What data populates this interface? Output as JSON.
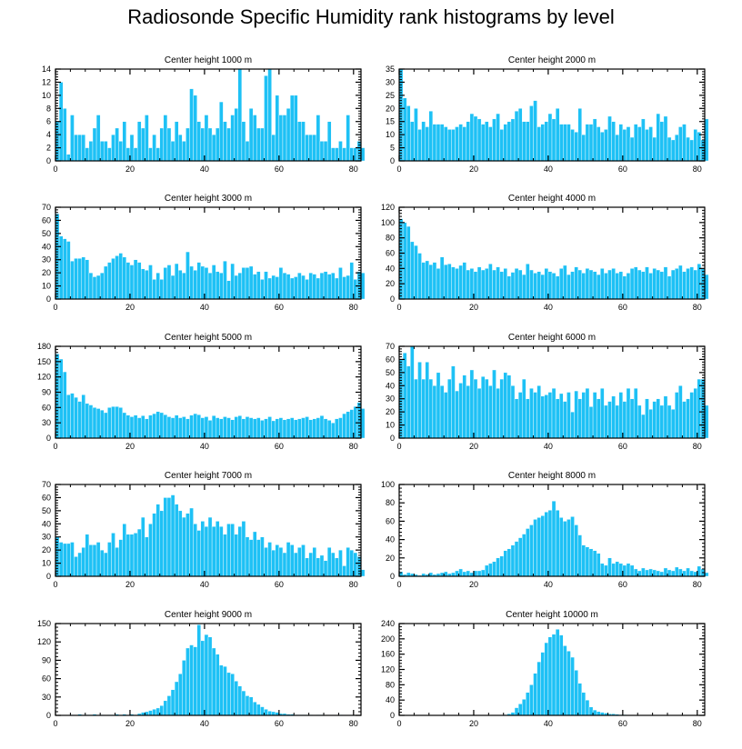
{
  "title": "Radiosonde Specific Humidity rank histograms by level",
  "colors": {
    "bar": "#1ec1f5",
    "axis": "#000000",
    "bar_edge": "#ffffff"
  },
  "chart_data": [
    {
      "type": "bar",
      "title": "Center height 1000 m",
      "xlabel": "",
      "ylabel": "",
      "xlim": [
        0,
        82
      ],
      "ylim": [
        0,
        14
      ],
      "xticks": [
        0,
        20,
        40,
        60,
        80
      ],
      "yticks": [
        0,
        2,
        4,
        6,
        8,
        10,
        12,
        14
      ],
      "values": [
        6,
        12,
        8,
        1,
        7,
        4,
        4,
        4,
        2,
        3,
        5,
        7,
        3,
        3,
        2,
        4,
        5,
        3,
        6,
        2,
        4,
        2,
        6,
        5,
        7,
        2,
        4,
        2,
        5,
        7,
        5,
        3,
        6,
        4,
        3,
        5,
        11,
        10,
        6,
        5,
        7,
        5,
        4,
        5,
        9,
        6,
        5,
        7,
        8,
        14,
        6,
        3,
        8,
        7,
        5,
        5,
        13,
        14,
        4,
        10,
        7,
        7,
        8,
        10,
        10,
        6,
        6,
        4,
        4,
        4,
        7,
        3,
        3,
        6,
        2,
        2,
        3,
        2,
        7,
        2,
        2,
        3,
        2
      ]
    },
    {
      "type": "bar",
      "title": "Center height 2000 m",
      "xlabel": "",
      "ylabel": "",
      "xlim": [
        0,
        82
      ],
      "ylim": [
        0,
        35
      ],
      "xticks": [
        0,
        20,
        40,
        60,
        80
      ],
      "yticks": [
        0,
        5,
        10,
        15,
        20,
        25,
        30,
        35
      ],
      "values": [
        35,
        24,
        21,
        15,
        20,
        12,
        15,
        13,
        19,
        14,
        14,
        14,
        13,
        12,
        12,
        13,
        14,
        13,
        15,
        18,
        17,
        16,
        14,
        15,
        13,
        16,
        18,
        12,
        14,
        15,
        16,
        19,
        20,
        15,
        15,
        21,
        23,
        13,
        14,
        15,
        18,
        16,
        20,
        14,
        14,
        14,
        12,
        11,
        20,
        10,
        14,
        14,
        16,
        13,
        11,
        12,
        17,
        15,
        10,
        14,
        12,
        13,
        9,
        14,
        13,
        16,
        12,
        13,
        9,
        18,
        15,
        17,
        9,
        8,
        10,
        13,
        14,
        9,
        8,
        12,
        11,
        8,
        16
      ]
    },
    {
      "type": "bar",
      "title": "Center height 3000 m",
      "xlabel": "",
      "ylabel": "",
      "xlim": [
        0,
        82
      ],
      "ylim": [
        0,
        70
      ],
      "xticks": [
        0,
        20,
        40,
        60,
        80
      ],
      "yticks": [
        0,
        10,
        20,
        30,
        40,
        50,
        60,
        70
      ],
      "values": [
        65,
        48,
        46,
        44,
        29,
        31,
        31,
        32,
        30,
        20,
        17,
        18,
        20,
        25,
        28,
        31,
        33,
        35,
        32,
        28,
        26,
        30,
        28,
        23,
        22,
        26,
        15,
        20,
        15,
        24,
        26,
        18,
        27,
        22,
        20,
        36,
        25,
        22,
        28,
        25,
        24,
        20,
        26,
        21,
        20,
        29,
        14,
        27,
        18,
        20,
        24,
        24,
        25,
        19,
        21,
        15,
        21,
        16,
        18,
        17,
        24,
        20,
        19,
        16,
        17,
        20,
        18,
        15,
        20,
        19,
        16,
        20,
        21,
        19,
        20,
        16,
        24,
        17,
        18,
        28,
        15,
        21,
        20
      ]
    },
    {
      "type": "bar",
      "title": "Center height 4000 m",
      "xlabel": "",
      "ylabel": "",
      "xlim": [
        0,
        82
      ],
      "ylim": [
        0,
        120
      ],
      "xticks": [
        0,
        20,
        40,
        60,
        80
      ],
      "yticks": [
        0,
        20,
        40,
        60,
        80,
        100,
        120
      ],
      "values": [
        105,
        100,
        95,
        75,
        70,
        60,
        48,
        50,
        45,
        48,
        40,
        55,
        45,
        46,
        42,
        40,
        44,
        48,
        38,
        40,
        36,
        42,
        38,
        40,
        46,
        38,
        42,
        36,
        40,
        30,
        35,
        40,
        38,
        32,
        46,
        38,
        34,
        36,
        32,
        40,
        36,
        34,
        30,
        40,
        44,
        32,
        36,
        42,
        38,
        34,
        40,
        38,
        36,
        32,
        40,
        34,
        38,
        40,
        34,
        36,
        30,
        34,
        40,
        42,
        38,
        36,
        42,
        34,
        40,
        38,
        36,
        42,
        30,
        38,
        40,
        44,
        36,
        40,
        42,
        38,
        46,
        40,
        32
      ]
    },
    {
      "type": "bar",
      "title": "Center height 5000 m",
      "xlabel": "",
      "ylabel": "",
      "xlim": [
        0,
        82
      ],
      "ylim": [
        0,
        180
      ],
      "xticks": [
        0,
        20,
        40,
        60,
        80
      ],
      "yticks": [
        0,
        30,
        60,
        90,
        120,
        150,
        180
      ],
      "values": [
        165,
        155,
        130,
        85,
        88,
        80,
        72,
        85,
        68,
        65,
        60,
        58,
        55,
        50,
        60,
        62,
        62,
        60,
        50,
        45,
        42,
        45,
        40,
        44,
        38,
        45,
        48,
        52,
        50,
        46,
        42,
        40,
        45,
        40,
        42,
        38,
        45,
        48,
        46,
        40,
        42,
        35,
        44,
        40,
        38,
        42,
        40,
        36,
        42,
        44,
        38,
        42,
        40,
        38,
        40,
        35,
        38,
        42,
        34,
        38,
        40,
        36,
        38,
        40,
        36,
        38,
        40,
        42,
        36,
        38,
        40,
        44,
        38,
        35,
        30,
        38,
        40,
        48,
        52,
        56,
        62,
        70,
        58
      ]
    },
    {
      "type": "bar",
      "title": "Center height 6000 m",
      "xlabel": "",
      "ylabel": "",
      "xlim": [
        0,
        82
      ],
      "ylim": [
        0,
        70
      ],
      "xticks": [
        0,
        20,
        40,
        60,
        80
      ],
      "yticks": [
        0,
        10,
        20,
        30,
        40,
        50,
        60,
        70
      ],
      "values": [
        60,
        65,
        55,
        70,
        45,
        58,
        45,
        58,
        45,
        40,
        50,
        40,
        35,
        45,
        55,
        36,
        42,
        48,
        40,
        52,
        45,
        38,
        47,
        45,
        40,
        52,
        38,
        45,
        50,
        48,
        40,
        30,
        35,
        45,
        30,
        38,
        35,
        40,
        32,
        33,
        35,
        38,
        30,
        34,
        28,
        35,
        20,
        36,
        30,
        35,
        38,
        24,
        35,
        30,
        38,
        25,
        28,
        32,
        25,
        35,
        28,
        38,
        30,
        38,
        25,
        18,
        30,
        22,
        28,
        30,
        25,
        32,
        25,
        22,
        35,
        40,
        28,
        30,
        35,
        38,
        45,
        45,
        25
      ]
    },
    {
      "type": "bar",
      "title": "Center height 7000 m",
      "xlabel": "",
      "ylabel": "",
      "xlim": [
        0,
        82
      ],
      "ylim": [
        0,
        70
      ],
      "xticks": [
        0,
        20,
        40,
        60,
        80
      ],
      "yticks": [
        0,
        10,
        20,
        30,
        40,
        50,
        60,
        70
      ],
      "values": [
        30,
        26,
        25,
        25,
        26,
        15,
        18,
        22,
        32,
        24,
        24,
        26,
        20,
        18,
        26,
        33,
        22,
        28,
        40,
        32,
        32,
        33,
        36,
        45,
        30,
        40,
        48,
        55,
        50,
        60,
        60,
        62,
        55,
        50,
        45,
        48,
        52,
        40,
        35,
        42,
        38,
        45,
        38,
        42,
        38,
        32,
        40,
        40,
        32,
        38,
        42,
        30,
        28,
        34,
        28,
        30,
        22,
        26,
        20,
        24,
        22,
        18,
        26,
        24,
        18,
        22,
        24,
        14,
        18,
        22,
        14,
        16,
        12,
        22,
        18,
        14,
        20,
        8,
        22,
        20,
        18,
        15,
        5
      ]
    },
    {
      "type": "bar",
      "title": "Center height 8000 m",
      "xlabel": "",
      "ylabel": "",
      "xlim": [
        0,
        82
      ],
      "ylim": [
        0,
        100
      ],
      "xticks": [
        0,
        20,
        40,
        60,
        80
      ],
      "yticks": [
        0,
        20,
        40,
        60,
        80,
        100
      ],
      "values": [
        5,
        2,
        4,
        3,
        2,
        1,
        3,
        2,
        4,
        2,
        3,
        4,
        5,
        3,
        4,
        6,
        8,
        5,
        6,
        4,
        6,
        6,
        7,
        12,
        14,
        16,
        20,
        22,
        28,
        30,
        34,
        38,
        42,
        46,
        52,
        56,
        62,
        64,
        66,
        70,
        72,
        82,
        72,
        64,
        60,
        62,
        65,
        56,
        45,
        34,
        32,
        30,
        28,
        25,
        14,
        12,
        20,
        14,
        16,
        14,
        12,
        14,
        12,
        8,
        6,
        9,
        7,
        8,
        7,
        6,
        5,
        9,
        7,
        6,
        10,
        8,
        6,
        9,
        6,
        5,
        11,
        8,
        4
      ]
    },
    {
      "type": "bar",
      "title": "Center height 9000 m",
      "xlabel": "",
      "ylabel": "",
      "xlim": [
        0,
        82
      ],
      "ylim": [
        0,
        150
      ],
      "xticks": [
        0,
        20,
        40,
        60,
        80
      ],
      "yticks": [
        0,
        30,
        60,
        90,
        120,
        150
      ],
      "values": [
        0,
        0,
        0,
        0,
        1,
        0,
        2,
        1,
        1,
        1,
        2,
        1,
        1,
        0,
        1,
        1,
        2,
        1,
        2,
        1,
        2,
        1,
        3,
        5,
        6,
        8,
        10,
        12,
        16,
        24,
        32,
        42,
        55,
        68,
        90,
        110,
        115,
        112,
        148,
        122,
        132,
        128,
        110,
        100,
        82,
        80,
        70,
        68,
        56,
        48,
        40,
        32,
        30,
        22,
        18,
        14,
        10,
        7,
        6,
        5,
        3,
        3,
        2,
        2,
        1,
        1,
        1,
        1,
        1,
        0,
        1,
        1,
        0,
        0,
        0,
        0,
        1,
        0,
        0,
        0,
        0,
        0,
        0
      ]
    },
    {
      "type": "bar",
      "title": "Center height 10000 m",
      "xlabel": "",
      "ylabel": "",
      "xlim": [
        0,
        82
      ],
      "ylim": [
        0,
        240
      ],
      "xticks": [
        0,
        20,
        40,
        60,
        80
      ],
      "yticks": [
        0,
        40,
        80,
        120,
        160,
        200,
        240
      ],
      "values": [
        0,
        0,
        0,
        0,
        0,
        0,
        0,
        0,
        0,
        0,
        0,
        0,
        0,
        0,
        0,
        0,
        0,
        0,
        0,
        0,
        0,
        0,
        0,
        0,
        0,
        0,
        0,
        1,
        2,
        4,
        8,
        20,
        30,
        42,
        60,
        80,
        110,
        140,
        165,
        190,
        205,
        212,
        225,
        210,
        182,
        168,
        152,
        118,
        84,
        60,
        40,
        22,
        14,
        10,
        8,
        6,
        4,
        4,
        3,
        2,
        2,
        1,
        1,
        1,
        0,
        1,
        0,
        0,
        0,
        0,
        0,
        0,
        0,
        0,
        0,
        0,
        0,
        0,
        0,
        0,
        0,
        0,
        0
      ]
    }
  ]
}
